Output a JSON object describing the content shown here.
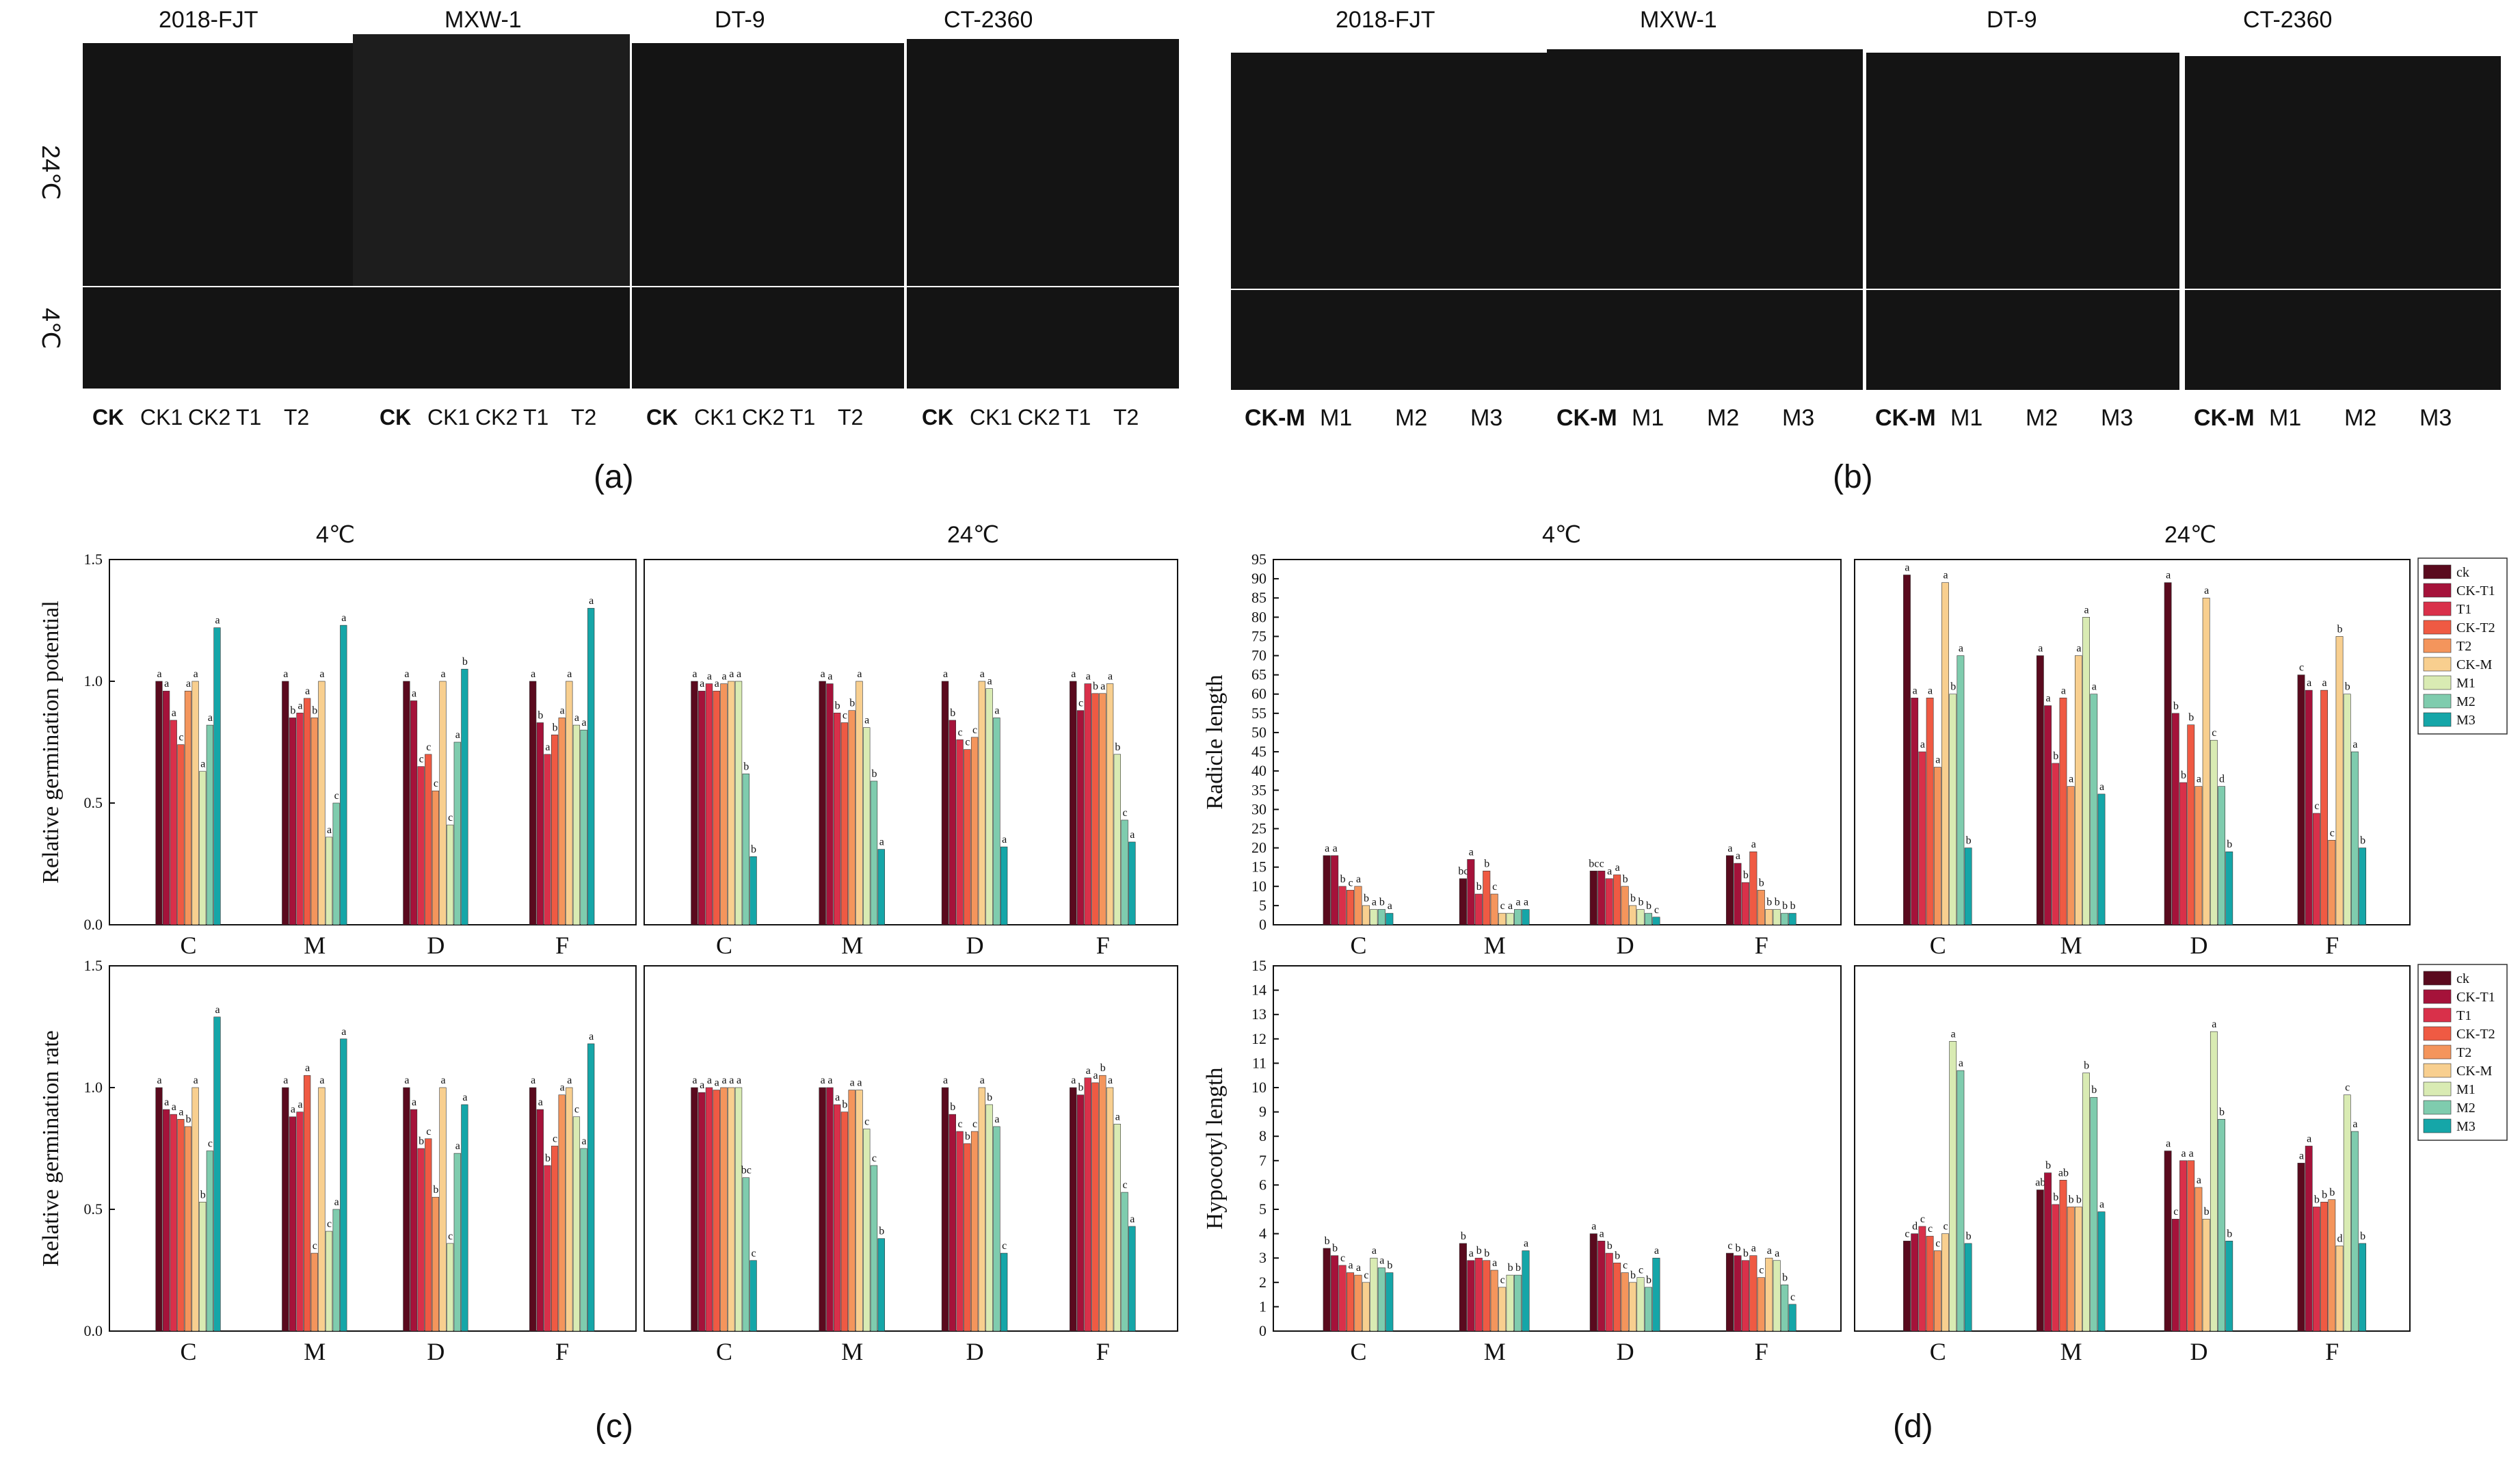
{
  "panel_a": {
    "letter": "(a)",
    "cultivars": [
      "2018-FJT",
      "MXW-1",
      "DT-9",
      "CT-2360"
    ],
    "temps": [
      "24℃",
      "4℃"
    ],
    "treatments": [
      "CK",
      "CK1",
      "CK2",
      "T1",
      "T2"
    ]
  },
  "panel_b": {
    "letter": "(b)",
    "cultivars": [
      "2018-FJT",
      "MXW-1",
      "DT-9",
      "CT-2360"
    ],
    "treatments": [
      "CK-M",
      "M1",
      "M2",
      "M3"
    ]
  },
  "panel_c": {
    "letter": "(c)",
    "temp_left": "4℃",
    "temp_right": "24℃"
  },
  "panel_d": {
    "letter": "(d)",
    "temp_left": "4℃",
    "temp_right": "24℃"
  },
  "colors": [
    "#5a0a1e",
    "#a5123a",
    "#d9304a",
    "#ef5a43",
    "#f4955c",
    "#f8cf8f",
    "#d9ebb3",
    "#7fccae",
    "#15a6a8"
  ],
  "chart_data": [
    {
      "type": "bar",
      "id": "germ_potential",
      "ylabel": "Relative germination potential",
      "ylim": [
        0,
        1.5
      ],
      "yticks": [
        "0.0",
        "0.5",
        "1.0",
        "1.5"
      ],
      "categories": [
        "C",
        "M",
        "D",
        "F"
      ],
      "series_names": [
        "ck",
        "CK-T1",
        "T1",
        "CK-T2",
        "T2",
        "CK-M",
        "M1",
        "M2",
        "M3"
      ],
      "panels": [
        {
          "temp": "4℃",
          "values": [
            [
              1.0,
              0.96,
              0.84,
              0.74,
              0.96,
              1.0,
              0.63,
              0.82,
              1.22
            ],
            [
              1.0,
              0.85,
              0.87,
              0.93,
              0.85,
              1.0,
              0.36,
              0.5,
              1.23
            ],
            [
              1.0,
              0.92,
              0.65,
              0.7,
              0.55,
              1.0,
              0.41,
              0.75,
              1.05
            ],
            [
              1.0,
              0.83,
              0.7,
              0.78,
              0.85,
              1.0,
              0.82,
              0.8,
              1.3
            ]
          ],
          "letters": [
            [
              "a",
              "a",
              "a",
              "c",
              "a",
              "a",
              "a",
              "a",
              "a"
            ],
            [
              "a",
              "b",
              "a",
              "a",
              "b",
              "a",
              "a",
              "c",
              "a"
            ],
            [
              "a",
              "a",
              "c",
              "c",
              "c",
              "a",
              "c",
              "a",
              "b"
            ],
            [
              "a",
              "b",
              "a",
              "b",
              "a",
              "a",
              "a",
              "a",
              "a"
            ]
          ]
        },
        {
          "temp": "24℃",
          "values": [
            [
              1.0,
              0.96,
              0.99,
              0.96,
              0.99,
              1.0,
              1.0,
              0.62,
              0.28
            ],
            [
              1.0,
              0.99,
              0.87,
              0.83,
              0.88,
              1.0,
              0.81,
              0.59,
              0.31
            ],
            [
              1.0,
              0.84,
              0.76,
              0.72,
              0.77,
              1.0,
              0.97,
              0.85,
              0.32
            ],
            [
              1.0,
              0.88,
              0.99,
              0.95,
              0.95,
              0.99,
              0.7,
              0.43,
              0.34
            ]
          ],
          "letters": [
            [
              "a",
              "a",
              "a",
              "a",
              "a",
              "a",
              "a",
              "b",
              "b"
            ],
            [
              "a",
              "a",
              "b",
              "c",
              "b",
              "a",
              "a",
              "b",
              "a"
            ],
            [
              "a",
              "b",
              "c",
              "c",
              "c",
              "a",
              "a",
              "a",
              "a"
            ],
            [
              "a",
              "c",
              "a",
              "b",
              "a",
              "a",
              "b",
              "c",
              "a"
            ]
          ]
        }
      ]
    },
    {
      "type": "bar",
      "id": "germ_rate",
      "ylabel": "Relative germination rate",
      "ylim": [
        0,
        1.5
      ],
      "yticks": [
        "0.0",
        "0.5",
        "1.0",
        "1.5"
      ],
      "categories": [
        "C",
        "M",
        "D",
        "F"
      ],
      "series_names": [
        "ck",
        "CK-T1",
        "T1",
        "CK-T2",
        "T2",
        "CK-M",
        "M1",
        "M2",
        "M3"
      ],
      "panels": [
        {
          "temp": "4℃",
          "values": [
            [
              1.0,
              0.91,
              0.89,
              0.87,
              0.84,
              1.0,
              0.53,
              0.74,
              1.29
            ],
            [
              1.0,
              0.88,
              0.9,
              1.05,
              0.32,
              1.0,
              0.41,
              0.5,
              1.2
            ],
            [
              1.0,
              0.91,
              0.75,
              0.79,
              0.55,
              1.0,
              0.36,
              0.73,
              0.93
            ],
            [
              1.0,
              0.91,
              0.68,
              0.76,
              0.97,
              1.0,
              0.88,
              0.75,
              1.18
            ]
          ],
          "letters": [
            [
              "a",
              "a",
              "a",
              "a",
              "b",
              "a",
              "b",
              "c",
              "a"
            ],
            [
              "a",
              "a",
              "a",
              "a",
              "c",
              "a",
              "c",
              "a",
              "a"
            ],
            [
              "a",
              "a",
              "b",
              "c",
              "b",
              "a",
              "c",
              "a",
              "a"
            ],
            [
              "a",
              "a",
              "b",
              "c",
              "a",
              "a",
              "c",
              "a",
              "a"
            ]
          ]
        },
        {
          "temp": "24℃",
          "values": [
            [
              1.0,
              0.98,
              1.0,
              0.99,
              1.0,
              1.0,
              1.0,
              0.63,
              0.29
            ],
            [
              1.0,
              1.0,
              0.93,
              0.9,
              0.99,
              0.99,
              0.83,
              0.68,
              0.38
            ],
            [
              1.0,
              0.89,
              0.82,
              0.77,
              0.82,
              1.0,
              0.93,
              0.84,
              0.32
            ],
            [
              1.0,
              0.97,
              1.04,
              1.02,
              1.05,
              1.0,
              0.85,
              0.57,
              0.43
            ]
          ],
          "letters": [
            [
              "a",
              "a",
              "a",
              "a",
              "a",
              "a",
              "a",
              "bc",
              "c"
            ],
            [
              "a",
              "a",
              "a",
              "b",
              "a",
              "a",
              "c",
              "c",
              "b"
            ],
            [
              "a",
              "b",
              "c",
              "b",
              "c",
              "a",
              "b",
              "a",
              "c"
            ],
            [
              "a",
              "b",
              "a",
              "a",
              "b",
              "a",
              "a",
              "c",
              "a"
            ]
          ]
        }
      ]
    },
    {
      "type": "bar",
      "id": "radicle",
      "ylabel": "Radicle length",
      "ylim": [
        0,
        95
      ],
      "yticks": [
        "0",
        "5",
        "10",
        "15",
        "20",
        "25",
        "30",
        "35",
        "40",
        "45",
        "50",
        "55",
        "60",
        "65",
        "70",
        "75",
        "80",
        "85",
        "90",
        "95"
      ],
      "categories": [
        "C",
        "M",
        "D",
        "F"
      ],
      "series_names": [
        "ck",
        "CK-T1",
        "T1",
        "CK-T2",
        "T2",
        "CK-M",
        "M1",
        "M2",
        "M3"
      ],
      "legend": [
        "ck",
        "CK-T1",
        "T1",
        "CK-T2",
        "T2",
        "CK-M",
        "M1",
        "M2",
        "M3"
      ],
      "panels": [
        {
          "temp": "4℃",
          "values": [
            [
              18,
              18,
              10,
              9,
              10,
              5,
              4,
              4,
              3
            ],
            [
              12,
              17,
              8,
              14,
              8,
              3,
              3,
              4,
              4
            ],
            [
              14,
              14,
              12,
              13,
              10,
              5,
              4,
              3,
              2
            ],
            [
              18,
              16,
              11,
              19,
              9,
              4,
              4,
              3,
              3
            ]
          ],
          "letters": [
            [
              "a",
              "a",
              "b",
              "c",
              "a",
              "b",
              "a",
              "b",
              "a"
            ],
            [
              "bc",
              "a",
              "b",
              "b",
              "c",
              "c",
              "a",
              "a",
              "a"
            ],
            [
              "bc",
              "c",
              "a",
              "a",
              "b",
              "b",
              "b",
              "b",
              "c"
            ],
            [
              "a",
              "a",
              "b",
              "a",
              "b",
              "b",
              "b",
              "b",
              "b"
            ]
          ]
        },
        {
          "temp": "24℃",
          "values": [
            [
              91,
              59,
              45,
              59,
              41,
              89,
              60,
              70,
              20
            ],
            [
              70,
              57,
              42,
              59,
              36,
              70,
              80,
              60,
              34
            ],
            [
              89,
              55,
              37,
              52,
              36,
              85,
              48,
              36,
              19
            ],
            [
              65,
              61,
              29,
              61,
              22,
              75,
              60,
              45,
              20
            ]
          ],
          "letters": [
            [
              "a",
              "a",
              "a",
              "a",
              "a",
              "a",
              "b",
              "a",
              "b"
            ],
            [
              "a",
              "a",
              "b",
              "a",
              "a",
              "a",
              "a",
              "a",
              "a"
            ],
            [
              "a",
              "b",
              "b",
              "b",
              "a",
              "a",
              "c",
              "d",
              "b"
            ],
            [
              "c",
              "a",
              "c",
              "a",
              "c",
              "b",
              "b",
              "a",
              "b"
            ]
          ]
        }
      ]
    },
    {
      "type": "bar",
      "id": "hypocotyl",
      "ylabel": "Hypocotyl length",
      "ylim": [
        0,
        15
      ],
      "yticks": [
        "0",
        "1",
        "2",
        "3",
        "4",
        "5",
        "6",
        "7",
        "8",
        "9",
        "10",
        "11",
        "12",
        "13",
        "14",
        "15"
      ],
      "categories": [
        "C",
        "M",
        "D",
        "F"
      ],
      "series_names": [
        "ck",
        "CK-T1",
        "T1",
        "CK-T2",
        "T2",
        "CK-M",
        "M1",
        "M2",
        "M3"
      ],
      "legend": [
        "ck",
        "CK-T1",
        "T1",
        "CK-T2",
        "T2",
        "CK-M",
        "M1",
        "M2",
        "M3"
      ],
      "panels": [
        {
          "temp": "4℃",
          "values": [
            [
              3.4,
              3.1,
              2.7,
              2.4,
              2.3,
              2.0,
              3.0,
              2.6,
              2.4
            ],
            [
              3.6,
              2.9,
              3.0,
              2.9,
              2.5,
              1.8,
              2.3,
              2.3,
              3.3
            ],
            [
              4.0,
              3.7,
              3.2,
              2.8,
              2.4,
              2.0,
              2.2,
              1.8,
              3.0
            ],
            [
              3.2,
              3.1,
              2.9,
              3.1,
              2.2,
              3.0,
              2.9,
              1.9,
              1.1
            ]
          ],
          "letters": [
            [
              "b",
              "b",
              "c",
              "a",
              "a",
              "c",
              "a",
              "a",
              "b"
            ],
            [
              "b",
              "a",
              "b",
              "b",
              "a",
              "c",
              "b",
              "b",
              "a"
            ],
            [
              "a",
              "a",
              "b",
              "b",
              "c",
              "b",
              "c",
              "b",
              "a"
            ],
            [
              "c",
              "b",
              "b",
              "a",
              "c",
              "a",
              "a",
              "b",
              "c"
            ]
          ]
        },
        {
          "temp": "24℃",
          "values": [
            [
              3.7,
              4.0,
              4.3,
              3.9,
              3.3,
              4.0,
              11.9,
              10.7,
              3.6
            ],
            [
              5.8,
              6.5,
              5.2,
              6.2,
              5.1,
              5.1,
              10.6,
              9.6,
              4.9
            ],
            [
              7.4,
              4.6,
              7.0,
              7.0,
              5.9,
              4.6,
              12.3,
              8.7,
              3.7
            ],
            [
              6.9,
              7.6,
              5.1,
              5.3,
              5.4,
              3.5,
              9.7,
              8.2,
              3.6
            ]
          ],
          "letters": [
            [
              "c",
              "d",
              "c",
              "c",
              "c",
              "c",
              "a",
              "a",
              "b"
            ],
            [
              "ab",
              "b",
              "b",
              "ab",
              "b",
              "b",
              "b",
              "b",
              "a"
            ],
            [
              "a",
              "c",
              "a",
              "a",
              "a",
              "b",
              "a",
              "b",
              "b"
            ],
            [
              "a",
              "a",
              "b",
              "b",
              "b",
              "d",
              "c",
              "a",
              "b"
            ]
          ]
        }
      ]
    }
  ]
}
